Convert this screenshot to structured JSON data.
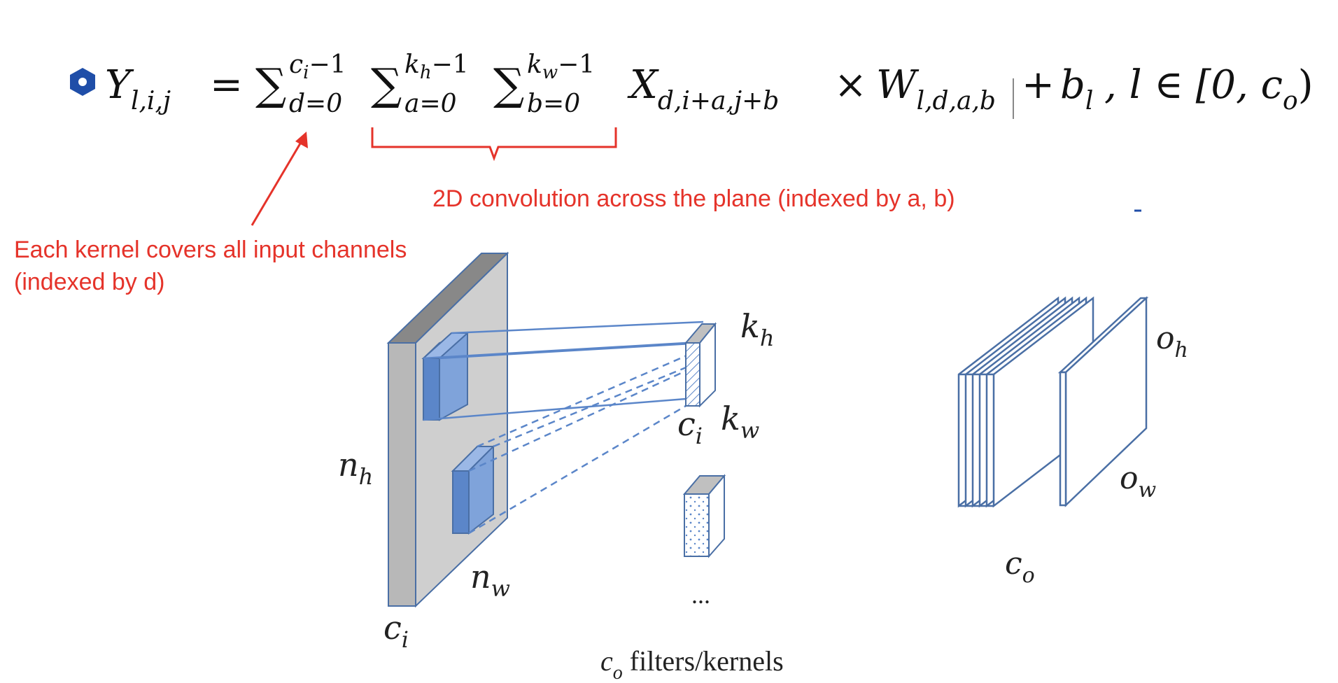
{
  "formula": {
    "lhs": "Y",
    "lhs_sub": "l,i,j",
    "equals": "=",
    "sum1_sup": "c",
    "sum1_sup_sub": "i",
    "sum1_sup_rest": "−1",
    "sum1_sub": "d=0",
    "sum2_sup": "k",
    "sum2_sup_sub": "h",
    "sum2_sup_rest": "−1",
    "sum2_sub": "a=0",
    "sum3_sup": "k",
    "sum3_sup_sub": "w",
    "sum3_sup_rest": "−1",
    "sum3_sub": "b=0",
    "x_symbol": "X",
    "x_sub": "d,i+a,j+b",
    "times": "×",
    "w_symbol": "W",
    "w_sub": "l,d,a,b",
    "plus": "+",
    "bias": "b",
    "bias_sub": "l",
    "range": ", l ∈ [0, c",
    "range_sub": "o",
    "range_close": ")"
  },
  "annotations": {
    "conv2d": "2D convolution across the plane (indexed by a, b)",
    "kernel_line1": "Each kernel covers all input channels",
    "kernel_line2": "(indexed by d)"
  },
  "labels": {
    "n_h": "n",
    "n_h_sub": "h",
    "n_w": "n",
    "n_w_sub": "w",
    "c_i_input": "c",
    "c_i_input_sub": "i",
    "k_h": "k",
    "k_h_sub": "h",
    "c_i_kernel": "c",
    "c_i_kernel_sub": "i",
    "k_w": "k",
    "k_w_sub": "w",
    "ellipsis": "...",
    "o_h": "o",
    "o_h_sub": "h",
    "o_w": "o",
    "o_w_sub": "w",
    "c_o": "c",
    "c_o_sub": "o",
    "caption_sym": "c",
    "caption_sub": "o",
    "caption_text": " filters/kernels"
  },
  "colors": {
    "accent_red": "#e5332a",
    "bullet_blue": "#1f4ea8",
    "kernel_blue": "#5b86c9",
    "slab_gray": "#c8c8c8",
    "slab_dark": "#888888",
    "outline": "#4a6fa5"
  }
}
